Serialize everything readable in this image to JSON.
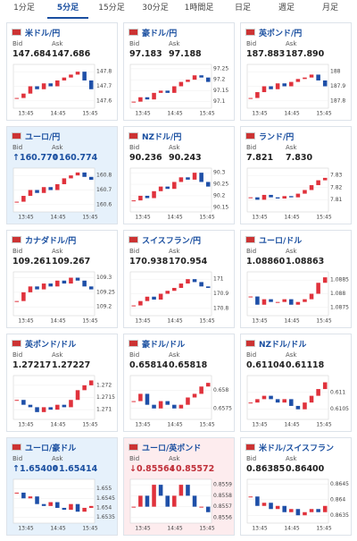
{
  "tabs": {
    "items": [
      "1分足",
      "5分足",
      "15分足",
      "30分足",
      "1時間足",
      "日足",
      "週足",
      "月足"
    ],
    "active": 1
  },
  "bid_label": "Bid",
  "ask_label": "Ask",
  "time_labels": [
    "13:45",
    "14:45",
    "15:45"
  ],
  "cards": [
    {
      "name": "米ドル/円",
      "bid": "147.684",
      "ask": "147.686",
      "ylim": [
        147.55,
        147.85
      ],
      "yticks": [
        147.8,
        147.7,
        147.6
      ],
      "closes": [
        147.62,
        147.65,
        147.7,
        147.68,
        147.72,
        147.7,
        147.74,
        147.76,
        147.78,
        147.8,
        147.74,
        147.68
      ]
    },
    {
      "name": "豪ドル/円",
      "bid": "97.183",
      "ask": "97.188",
      "ylim": [
        97.07,
        97.27
      ],
      "yticks": [
        97.25,
        97.2,
        97.15,
        97.1
      ],
      "closes": [
        97.1,
        97.12,
        97.11,
        97.14,
        97.15,
        97.14,
        97.17,
        97.19,
        97.2,
        97.22,
        97.21,
        97.19
      ]
    },
    {
      "name": "英ポンド/円",
      "bid": "187.883",
      "ask": "187.890",
      "ylim": [
        187.75,
        188.05
      ],
      "yticks": [
        188,
        187.9,
        187.8
      ],
      "closes": [
        187.82,
        187.86,
        187.9,
        187.88,
        187.92,
        187.9,
        187.93,
        187.95,
        187.96,
        187.98,
        187.94,
        187.9
      ]
    },
    {
      "name": "ユーロ/円",
      "bid": "↑160.770",
      "ask": "↑160.774",
      "highlight": "up",
      "ylim": [
        160.55,
        160.85
      ],
      "yticks": [
        160.8,
        160.7,
        160.6
      ],
      "closes": [
        160.62,
        160.66,
        160.7,
        160.68,
        160.72,
        160.7,
        160.74,
        160.78,
        160.8,
        160.82,
        160.79,
        160.77
      ]
    },
    {
      "name": "NZドル/円",
      "bid": "90.236",
      "ask": "90.243",
      "ylim": [
        90.13,
        90.32
      ],
      "yticks": [
        90.3,
        90.25,
        90.2,
        90.15
      ],
      "closes": [
        90.18,
        90.2,
        90.19,
        90.22,
        90.24,
        90.23,
        90.26,
        90.28,
        90.27,
        90.3,
        90.26,
        90.24
      ]
    },
    {
      "name": "ランド/円",
      "bid": "7.821",
      "ask": "7.830",
      "ylim": [
        7.8,
        7.836
      ],
      "yticks": [
        7.83,
        7.82,
        7.81
      ],
      "closes": [
        7.812,
        7.81,
        7.814,
        7.812,
        7.811,
        7.813,
        7.812,
        7.815,
        7.818,
        7.822,
        7.826,
        7.828
      ]
    },
    {
      "name": "カナダドル/円",
      "bid": "109.261",
      "ask": "109.267",
      "ylim": [
        109.17,
        109.32
      ],
      "yticks": [
        109.3,
        109.25,
        109.2
      ],
      "closes": [
        109.22,
        109.25,
        109.27,
        109.26,
        109.28,
        109.27,
        109.29,
        109.28,
        109.3,
        109.29,
        109.27,
        109.26
      ]
    },
    {
      "name": "スイスフラン/円",
      "bid": "170.938",
      "ask": "170.954",
      "ylim": [
        170.75,
        171.05
      ],
      "yticks": [
        171,
        170.9,
        170.8
      ],
      "closes": [
        170.82,
        170.85,
        170.88,
        170.86,
        170.9,
        170.92,
        170.94,
        170.97,
        171,
        170.98,
        170.95,
        170.94
      ]
    },
    {
      "name": "ユーロ/ドル",
      "bid": "1.08860",
      "ask": "1.08863",
      "ylim": [
        1.0872,
        1.0888
      ],
      "yticks": [
        1.0885,
        1.088,
        1.0875
      ],
      "closes": [
        1.0879,
        1.0876,
        1.0878,
        1.0877,
        1.0877,
        1.0878,
        1.0876,
        1.0877,
        1.0878,
        1.088,
        1.0884,
        1.0886
      ]
    },
    {
      "name": "英ポンド/ドル",
      "bid": "1.27217",
      "ask": "1.27227",
      "ylim": [
        1.2706,
        1.2724
      ],
      "yticks": [
        1.272,
        1.2715,
        1.271
      ],
      "closes": [
        1.2714,
        1.2712,
        1.2711,
        1.2709,
        1.2711,
        1.271,
        1.2712,
        1.2711,
        1.2714,
        1.2718,
        1.272,
        1.2722
      ]
    },
    {
      "name": "豪ドル/ドル",
      "bid": "0.65814",
      "ask": "0.65818",
      "ylim": [
        0.6572,
        0.6584
      ],
      "yticks": [
        0.658,
        0.6575
      ],
      "closes": [
        0.6577,
        0.6579,
        0.6576,
        0.6575,
        0.6577,
        0.6576,
        0.6575,
        0.6576,
        0.6578,
        0.6579,
        0.6581,
        0.6582
      ]
    },
    {
      "name": "NZドル/ドル",
      "bid": "0.61104",
      "ask": "0.61118",
      "ylim": [
        0.6102,
        0.6115
      ],
      "yticks": [
        0.611,
        0.6105
      ],
      "closes": [
        0.6107,
        0.6108,
        0.6109,
        0.6108,
        0.6107,
        0.6108,
        0.6106,
        0.6105,
        0.6107,
        0.6109,
        0.6111,
        0.6113
      ]
    },
    {
      "name": "ユーロ/豪ドル",
      "bid": "↑1.65400",
      "ask": "↑1.65414",
      "highlight": "up",
      "ylim": [
        1.6532,
        1.6555
      ],
      "yticks": [
        1.655,
        1.6545,
        1.654,
        1.6535
      ],
      "closes": [
        1.6548,
        1.6545,
        1.6546,
        1.6542,
        1.6541,
        1.6543,
        1.654,
        1.6539,
        1.6542,
        1.6538,
        1.654,
        1.6541
      ]
    },
    {
      "name": "ユーロ/英ポンド",
      "bid": "↓0.85564",
      "ask": "↓0.85572",
      "highlight": "down",
      "ylim": [
        0.85555,
        0.85595
      ],
      "yticks": [
        0.8559,
        0.8558,
        0.8557,
        0.8556
      ],
      "closes": [
        0.8557,
        0.8558,
        0.8557,
        0.8559,
        0.8558,
        0.8557,
        0.8558,
        0.8559,
        0.8558,
        0.8557,
        0.8557,
        0.85565
      ]
    },
    {
      "name": "米ドル/スイスフラン",
      "bid": "0.86385",
      "ask": "0.86400",
      "ylim": [
        0.86325,
        0.86465
      ],
      "yticks": [
        0.8645,
        0.864,
        0.8635
      ],
      "closes": [
        0.8641,
        0.8638,
        0.8639,
        0.8637,
        0.8638,
        0.8636,
        0.8637,
        0.8635,
        0.8636,
        0.8637,
        0.8636,
        0.8638
      ]
    }
  ]
}
